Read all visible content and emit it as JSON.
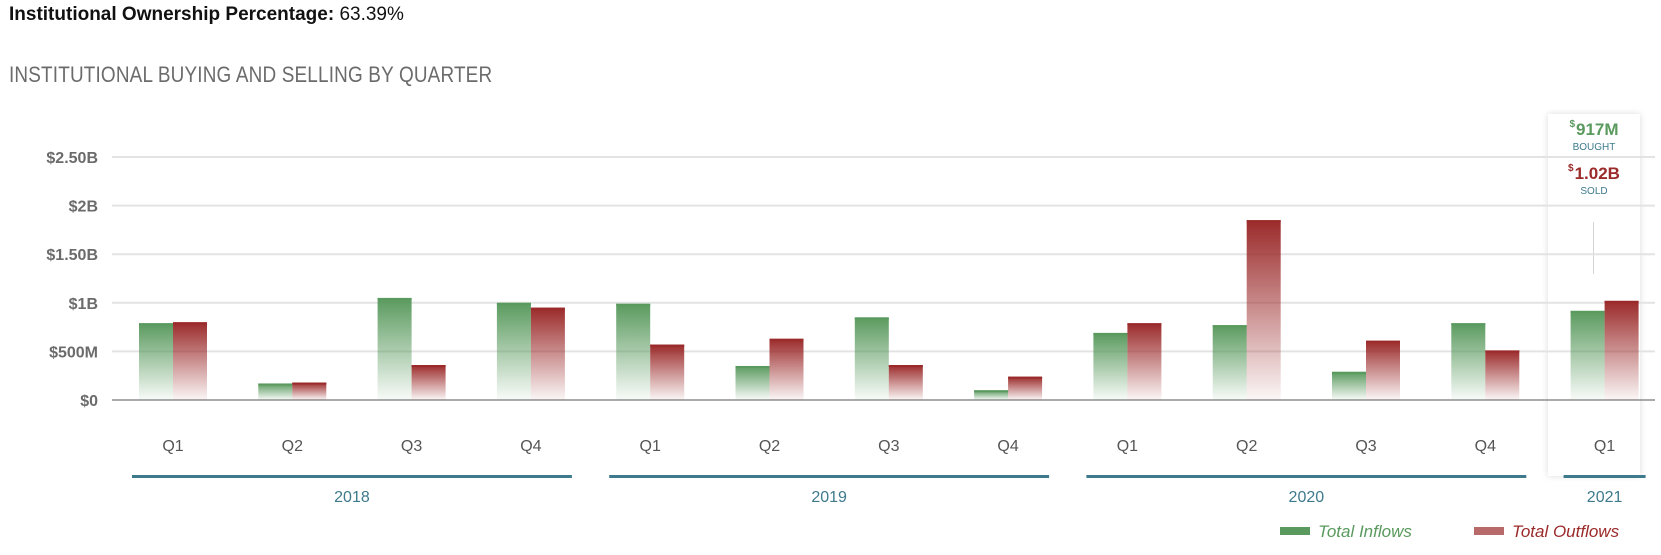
{
  "ownership": {
    "label": "Institutional Ownership Percentage",
    "value": "63.39%"
  },
  "section_title": "INSTITUTIONAL BUYING AND SELLING BY QUARTER",
  "tooltip": {
    "currency": "$",
    "bought_value": "917M",
    "bought_label": "BOUGHT",
    "sold_value": "1.02B",
    "sold_label": "SOLD"
  },
  "legend": {
    "inflows": "Total Inflows",
    "outflows": "Total Outflows"
  },
  "colors": {
    "inflow": "#5a9a5e",
    "outflow": "#9b2a2a",
    "axis_text": "#6b6b6b",
    "year_bar": "#3d7a8c",
    "grid": "#e3e3e3"
  },
  "chart_data": {
    "type": "bar",
    "title": "INSTITUTIONAL BUYING AND SELLING BY QUARTER",
    "categories": [
      "Q1",
      "Q2",
      "Q3",
      "Q4",
      "Q1",
      "Q2",
      "Q3",
      "Q4",
      "Q1",
      "Q2",
      "Q3",
      "Q4",
      "Q1"
    ],
    "groups": [
      {
        "label": "2018",
        "quarters": 4
      },
      {
        "label": "2019",
        "quarters": 4
      },
      {
        "label": "2020",
        "quarters": 4
      },
      {
        "label": "2021",
        "quarters": 1
      }
    ],
    "series": [
      {
        "name": "Total Inflows",
        "values": [
          0.79,
          0.17,
          1.05,
          1.0,
          0.99,
          0.35,
          0.85,
          0.1,
          0.69,
          0.77,
          0.29,
          0.79,
          0.917
        ]
      },
      {
        "name": "Total Outflows",
        "values": [
          0.8,
          0.18,
          0.36,
          0.95,
          0.57,
          0.63,
          0.36,
          0.24,
          0.79,
          1.85,
          0.61,
          0.51,
          1.02
        ]
      }
    ],
    "y_unit": "billions USD",
    "ylim": [
      0,
      2.5
    ],
    "yticks": [
      {
        "value": 0,
        "label": "$0"
      },
      {
        "value": 0.5,
        "label": "$500M"
      },
      {
        "value": 1.0,
        "label": "$1B"
      },
      {
        "value": 1.5,
        "label": "$1.50B"
      },
      {
        "value": 2.0,
        "label": "$2B"
      },
      {
        "value": 2.5,
        "label": "$2.50B"
      }
    ],
    "grid": true,
    "legend_position": "bottom-right"
  }
}
